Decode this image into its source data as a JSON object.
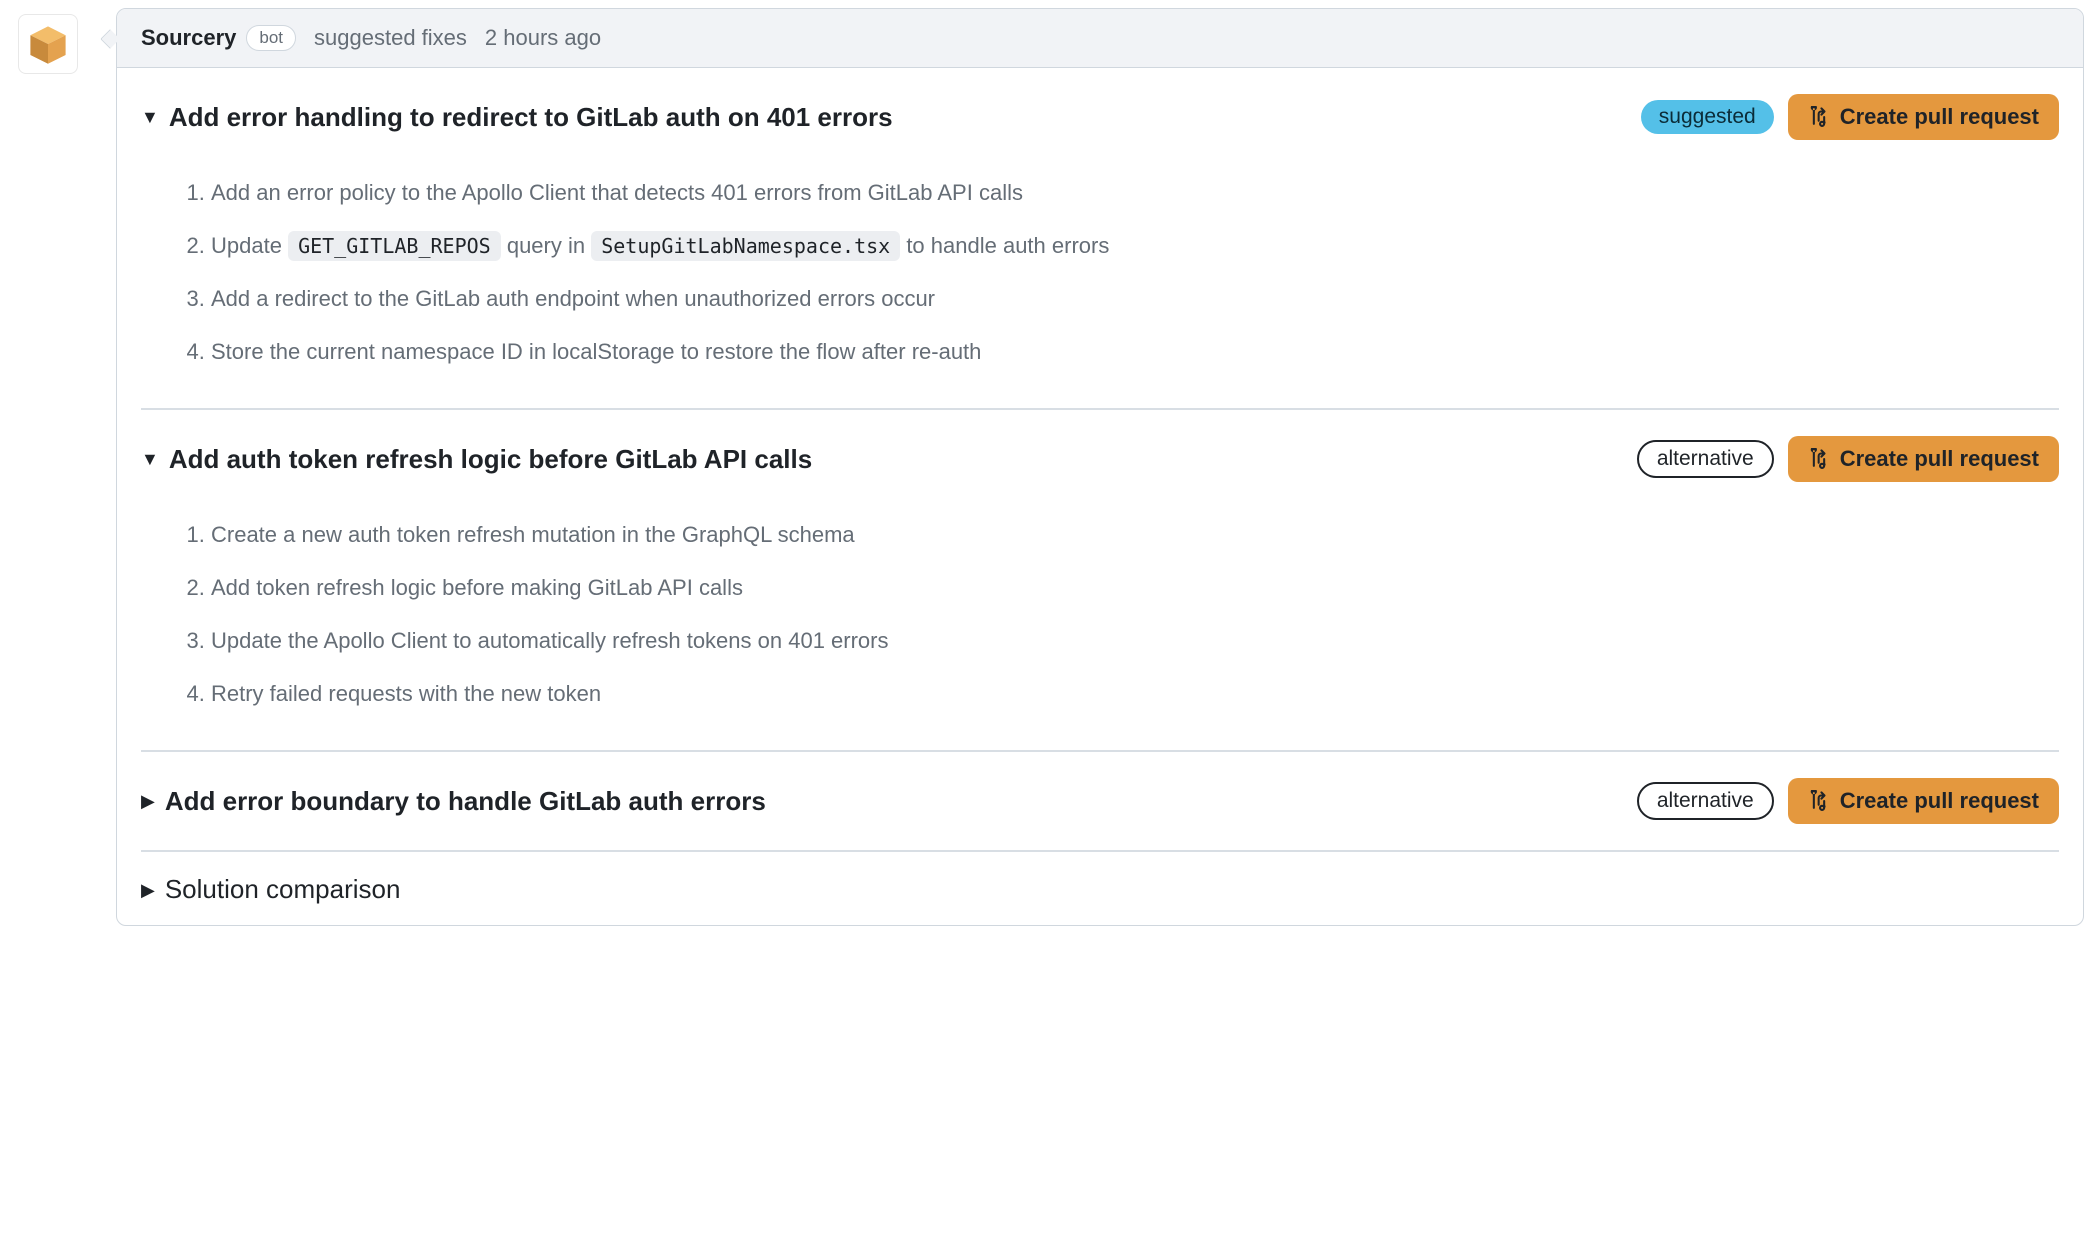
{
  "colors": {
    "border": "#d0d7de",
    "header_bg": "#f1f3f6",
    "text_muted": "#656d76",
    "badge_suggested_bg": "#54c0e8",
    "button_bg": "#e4983e",
    "divider": "#d8dee4",
    "code_bg": "#eceef1"
  },
  "header": {
    "author": "Sourcery",
    "bot_label": "bot",
    "action_text": "suggested fixes",
    "timestamp": "2 hours ago"
  },
  "avatar": {
    "icon_name": "box-3d-icon",
    "top_fill": "#f3bd6a",
    "left_fill": "#c88a3c",
    "right_fill": "#e4a24f"
  },
  "create_pr_label": "Create pull request",
  "sections": [
    {
      "expanded": true,
      "title": "Add error handling to redirect to GitLab auth on 401 errors",
      "badge": {
        "kind": "suggested",
        "label": "suggested"
      },
      "steps": [
        {
          "segments": [
            {
              "t": "text",
              "v": "Add an error policy to the Apollo Client that detects 401 errors from GitLab API calls"
            }
          ]
        },
        {
          "segments": [
            {
              "t": "text",
              "v": "Update "
            },
            {
              "t": "code",
              "v": "GET_GITLAB_REPOS"
            },
            {
              "t": "text",
              "v": " query in "
            },
            {
              "t": "code",
              "v": "SetupGitLabNamespace.tsx"
            },
            {
              "t": "text",
              "v": " to handle auth errors"
            }
          ]
        },
        {
          "segments": [
            {
              "t": "text",
              "v": "Add a redirect to the GitLab auth endpoint when unauthorized errors occur"
            }
          ]
        },
        {
          "segments": [
            {
              "t": "text",
              "v": "Store the current namespace ID in localStorage to restore the flow after re-auth"
            }
          ]
        }
      ]
    },
    {
      "expanded": true,
      "title": "Add auth token refresh logic before GitLab API calls",
      "badge": {
        "kind": "alternative",
        "label": "alternative"
      },
      "steps": [
        {
          "segments": [
            {
              "t": "text",
              "v": "Create a new auth token refresh mutation in the GraphQL schema"
            }
          ]
        },
        {
          "segments": [
            {
              "t": "text",
              "v": "Add token refresh logic before making GitLab API calls"
            }
          ]
        },
        {
          "segments": [
            {
              "t": "text",
              "v": "Update the Apollo Client to automatically refresh tokens on 401 errors"
            }
          ]
        },
        {
          "segments": [
            {
              "t": "text",
              "v": "Retry failed requests with the new token"
            }
          ]
        }
      ]
    },
    {
      "expanded": false,
      "title": "Add error boundary to handle GitLab auth errors",
      "badge": {
        "kind": "alternative",
        "label": "alternative"
      },
      "steps": []
    }
  ],
  "comparison": {
    "expanded": false,
    "title": "Solution comparison"
  }
}
